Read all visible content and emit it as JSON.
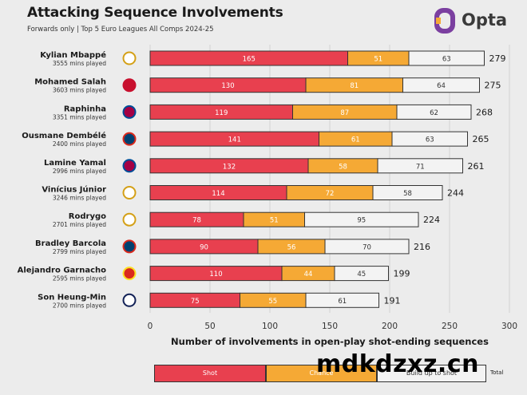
{
  "header": {
    "title": "Attacking Sequence Involvements",
    "subtitle": "Forwards only | Top 5 Euro Leagues All Comps 2024-25",
    "brand": "Opta"
  },
  "watermark": "mdkdzxz.cn",
  "colors": {
    "shot": "#e8404f",
    "chance": "#f5a935",
    "buildup": "#f3f3f3",
    "brand_accent": "#7b3fa0"
  },
  "legend": {
    "shot": "Shot",
    "chance": "Chance",
    "buildup": "Build up to shot",
    "total": "Total"
  },
  "chart_data": {
    "type": "bar",
    "orientation": "horizontal",
    "stacked": true,
    "xlabel": "Number of involvements in open-play shot-ending sequences",
    "xlim": [
      0,
      300
    ],
    "xticks": [
      0,
      50,
      100,
      150,
      200,
      250,
      300
    ],
    "grid": true,
    "categories": [
      {
        "name": "Kylian Mbappé",
        "minutes": "3555 mins played",
        "crest": "real-madrid-crest-icon"
      },
      {
        "name": "Mohamed Salah",
        "minutes": "3603 mins played",
        "crest": "liverpool-crest-icon"
      },
      {
        "name": "Raphinha",
        "minutes": "3351 mins played",
        "crest": "barcelona-crest-icon"
      },
      {
        "name": "Ousmane Dembélé",
        "minutes": "2400 mins played",
        "crest": "psg-crest-icon"
      },
      {
        "name": "Lamine Yamal",
        "minutes": "2996 mins played",
        "crest": "barcelona-crest-icon"
      },
      {
        "name": "Vinícius Júnior",
        "minutes": "3246 mins played",
        "crest": "real-madrid-crest-icon"
      },
      {
        "name": "Rodrygo",
        "minutes": "2701 mins played",
        "crest": "real-madrid-crest-icon"
      },
      {
        "name": "Bradley Barcola",
        "minutes": "2799 mins played",
        "crest": "psg-crest-icon"
      },
      {
        "name": "Alejandro Garnacho",
        "minutes": "2595 mins played",
        "crest": "man-united-crest-icon"
      },
      {
        "name": "Son Heung-Min",
        "minutes": "2700 mins played",
        "crest": "tottenham-crest-icon"
      }
    ],
    "series": [
      {
        "name": "Shot",
        "values": [
          165,
          130,
          119,
          141,
          132,
          114,
          78,
          90,
          110,
          75
        ]
      },
      {
        "name": "Chance",
        "values": [
          51,
          81,
          87,
          61,
          58,
          72,
          51,
          56,
          44,
          55
        ]
      },
      {
        "name": "Build up to shot",
        "values": [
          63,
          64,
          62,
          63,
          71,
          58,
          95,
          70,
          45,
          61
        ]
      }
    ],
    "totals": [
      279,
      275,
      268,
      265,
      261,
      244,
      224,
      216,
      199,
      191
    ]
  }
}
